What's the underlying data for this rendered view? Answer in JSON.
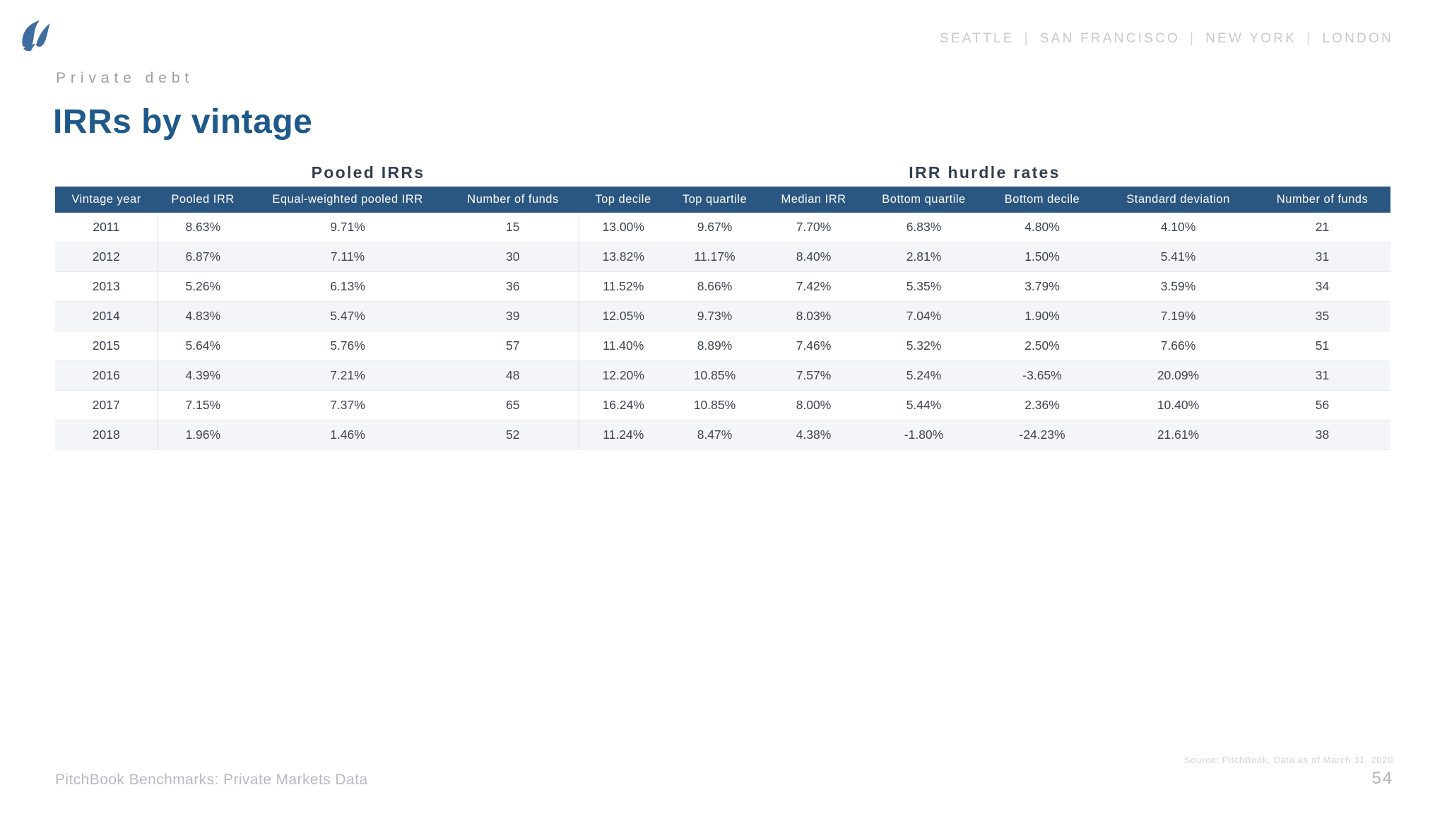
{
  "top_bar": {
    "cities": [
      "SEATTLE",
      "SAN FRANCISCO",
      "NEW YORK",
      "LONDON"
    ],
    "separator": "|"
  },
  "slide": {
    "eyebrow": "Private debt",
    "title": "IRRs by vintage"
  },
  "table": {
    "group_headers": [
      "Pooled IRRs",
      "IRR hurdle rates"
    ],
    "columns": [
      "Vintage year",
      "Pooled IRR",
      "Equal-weighted pooled IRR",
      "Number of funds",
      "Top decile",
      "Top quartile",
      "Median IRR",
      "Bottom quartile",
      "Bottom decile",
      "Standard deviation",
      "Number of funds"
    ],
    "rows": [
      [
        "2011",
        "8.63%",
        "9.71%",
        "15",
        "13.00%",
        "9.67%",
        "7.70%",
        "6.83%",
        "4.80%",
        "4.10%",
        "21"
      ],
      [
        "2012",
        "6.87%",
        "7.11%",
        "30",
        "13.82%",
        "11.17%",
        "8.40%",
        "2.81%",
        "1.50%",
        "5.41%",
        "31"
      ],
      [
        "2013",
        "5.26%",
        "6.13%",
        "36",
        "11.52%",
        "8.66%",
        "7.42%",
        "5.35%",
        "3.79%",
        "3.59%",
        "34"
      ],
      [
        "2014",
        "4.83%",
        "5.47%",
        "39",
        "12.05%",
        "9.73%",
        "8.03%",
        "7.04%",
        "1.90%",
        "7.19%",
        "35"
      ],
      [
        "2015",
        "5.64%",
        "5.76%",
        "57",
        "11.40%",
        "8.89%",
        "7.46%",
        "5.32%",
        "2.50%",
        "7.66%",
        "51"
      ],
      [
        "2016",
        "4.39%",
        "7.21%",
        "48",
        "12.20%",
        "10.85%",
        "7.57%",
        "5.24%",
        "-3.65%",
        "20.09%",
        "31"
      ],
      [
        "2017",
        "7.15%",
        "7.37%",
        "65",
        "16.24%",
        "10.85%",
        "8.00%",
        "5.44%",
        "2.36%",
        "10.40%",
        "56"
      ],
      [
        "2018",
        "1.96%",
        "1.46%",
        "52",
        "11.24%",
        "8.47%",
        "4.38%",
        "-1.80%",
        "-24.23%",
        "21.61%",
        "38"
      ]
    ]
  },
  "footer": {
    "left_text": "PitchBook Benchmarks: Private Markets Data",
    "source_note": "Source: PitchBook. Data as of March 31, 2020",
    "page_number": "54"
  },
  "colors": {
    "table_header_bg": "#2a5782",
    "title_blue": "#1e598a",
    "logo_blue": "#3e6d9f",
    "group_title_slate": "#333f50",
    "row_stripe": "#f4f5f8",
    "muted_gray": "#b6bac0"
  }
}
